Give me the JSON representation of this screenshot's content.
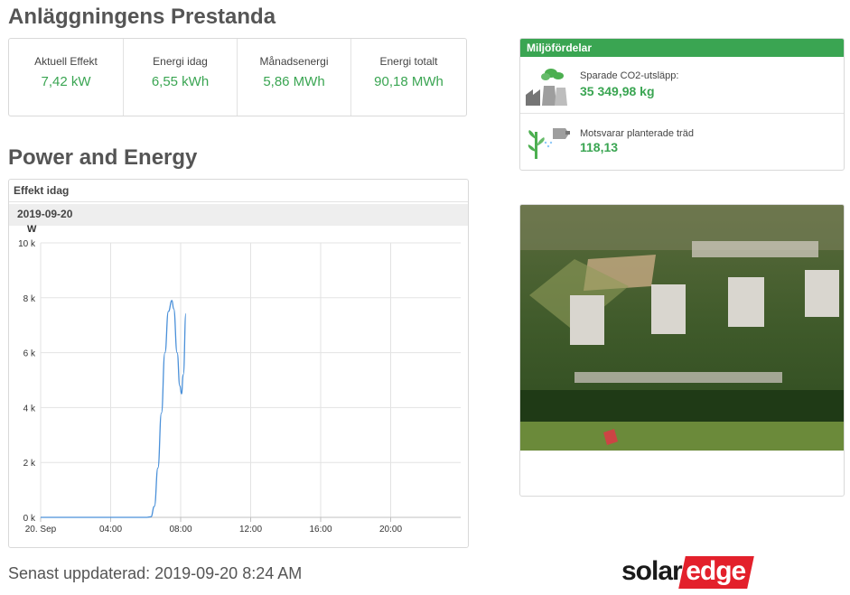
{
  "performance": {
    "title": "Anläggningens Prestanda",
    "kpis": [
      {
        "label": "Aktuell Effekt",
        "value": "7,42 kW"
      },
      {
        "label": "Energi idag",
        "value": "6,55 kWh"
      },
      {
        "label": "Månadsenergi",
        "value": "5,86 MWh"
      },
      {
        "label": "Energi totalt",
        "value": "90,18 MWh"
      }
    ]
  },
  "environment": {
    "title": "Miljöfördelar",
    "items": [
      {
        "icon": "factory-icon",
        "label": "Sparade CO2-utsläpp:",
        "value": "35 349,98 kg"
      },
      {
        "icon": "tree-icon",
        "label": "Motsvarar planterade träd",
        "value": "118,13"
      }
    ]
  },
  "power_energy": {
    "title": "Power and Energy",
    "panel_title": "Effekt idag",
    "date": "2019-09-20"
  },
  "chart_data": {
    "type": "line",
    "ylabel": "W",
    "ylim": [
      0,
      10000
    ],
    "y_ticks": [
      {
        "value": 0,
        "label": "0 k"
      },
      {
        "value": 2000,
        "label": "2 k"
      },
      {
        "value": 4000,
        "label": "4 k"
      },
      {
        "value": 6000,
        "label": "6 k"
      },
      {
        "value": 8000,
        "label": "8 k"
      },
      {
        "value": 10000,
        "label": "10 k"
      }
    ],
    "xlim": [
      0,
      24
    ],
    "x_ticks": [
      {
        "value": 0,
        "label": "20. Sep"
      },
      {
        "value": 4,
        "label": "04:00"
      },
      {
        "value": 8,
        "label": "08:00"
      },
      {
        "value": 12,
        "label": "12:00"
      },
      {
        "value": 16,
        "label": "16:00"
      },
      {
        "value": 20,
        "label": "20:00"
      }
    ],
    "grid": true,
    "series": [
      {
        "color": "#4a90d9",
        "points": [
          [
            0,
            0
          ],
          [
            6.0,
            0
          ],
          [
            6.3,
            20
          ],
          [
            6.5,
            400
          ],
          [
            6.7,
            1800
          ],
          [
            6.9,
            3800
          ],
          [
            7.1,
            6000
          ],
          [
            7.3,
            7500
          ],
          [
            7.5,
            7900
          ],
          [
            7.6,
            7600
          ],
          [
            7.8,
            6000
          ],
          [
            7.95,
            4800
          ],
          [
            8.05,
            4500
          ],
          [
            8.15,
            5200
          ],
          [
            8.3,
            7420
          ]
        ]
      }
    ]
  },
  "footer": {
    "last_updated": "Senast uppdaterad: 2019-09-20 8:24 AM",
    "brand_solar": "solar",
    "brand_edge": "edge"
  }
}
